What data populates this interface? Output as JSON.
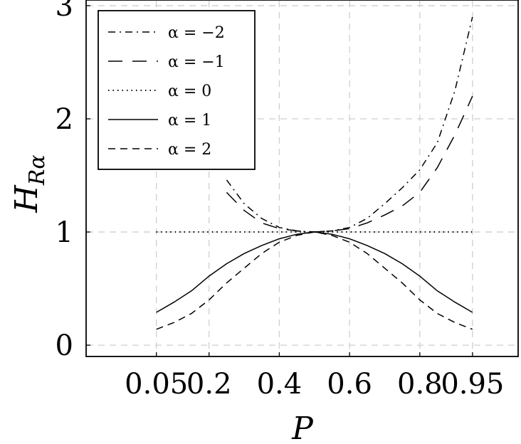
{
  "chart_data": {
    "type": "line",
    "xlabel": "P",
    "ylabel_main": "H",
    "ylabel_sub": "Rα",
    "x_ticks": [
      "0.05",
      "0.2",
      "0.4",
      "0.6",
      "0.8",
      "0.95"
    ],
    "x_tick_values": [
      0.05,
      0.2,
      0.4,
      0.6,
      0.8,
      0.95
    ],
    "y_ticks": [
      "0",
      "1",
      "2",
      "3"
    ],
    "y_tick_values": [
      0,
      1,
      2,
      3
    ],
    "xlim": [
      -0.15,
      1.08
    ],
    "ylim": [
      -0.1,
      3.05
    ],
    "grid": true,
    "legend_position": "top-left",
    "x": [
      0.05,
      0.1,
      0.15,
      0.2,
      0.25,
      0.3,
      0.35,
      0.4,
      0.45,
      0.5,
      0.55,
      0.6,
      0.65,
      0.7,
      0.75,
      0.8,
      0.85,
      0.9,
      0.95
    ],
    "series": [
      {
        "name": "α = −2",
        "dash": "dashdot",
        "values": [
          null,
          null,
          null,
          null,
          1.46,
          1.25,
          1.12,
          1.04,
          1.01,
          1.0,
          1.01,
          1.04,
          1.12,
          1.25,
          1.39,
          1.55,
          1.79,
          2.25,
          2.9
        ]
      },
      {
        "name": "α = −1",
        "dash": "longdash",
        "values": [
          null,
          null,
          null,
          null,
          1.35,
          1.19,
          1.08,
          1.03,
          1.01,
          1.0,
          1.01,
          1.03,
          1.08,
          1.15,
          1.23,
          1.35,
          1.57,
          1.86,
          2.2
        ]
      },
      {
        "name": "α = 0",
        "dash": "dotted",
        "values": [
          1.0,
          1.0,
          1.0,
          1.0,
          1.0,
          1.0,
          1.0,
          1.0,
          1.0,
          1.0,
          1.0,
          1.0,
          1.0,
          1.0,
          1.0,
          1.0,
          1.0,
          1.0,
          1.0
        ]
      },
      {
        "name": "α = 1",
        "dash": "solid",
        "values": [
          0.29,
          0.38,
          0.48,
          0.61,
          0.72,
          0.81,
          0.88,
          0.94,
          0.98,
          1.0,
          0.98,
          0.94,
          0.88,
          0.81,
          0.72,
          0.61,
          0.48,
          0.38,
          0.29
        ]
      },
      {
        "name": "α = 2",
        "dash": "dashed",
        "values": [
          0.14,
          0.2,
          0.28,
          0.4,
          0.55,
          0.68,
          0.81,
          0.91,
          0.97,
          1.0,
          0.97,
          0.91,
          0.81,
          0.68,
          0.55,
          0.4,
          0.28,
          0.2,
          0.14
        ]
      }
    ]
  }
}
